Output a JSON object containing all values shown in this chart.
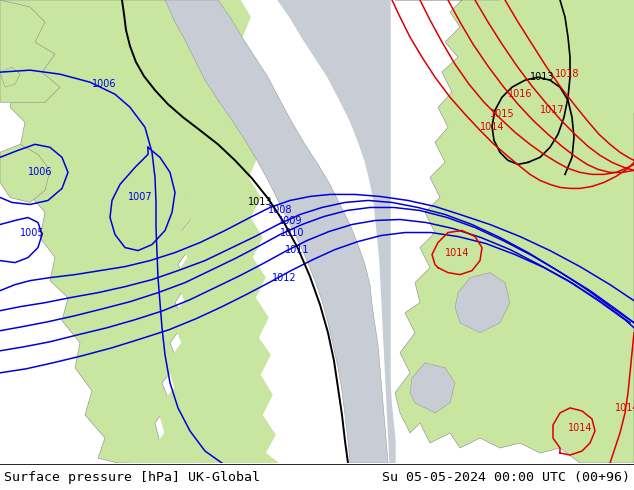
{
  "title_left": "Surface pressure [hPa] UK-Global",
  "title_right": "Su 05-05-2024 00:00 UTC (00+96)",
  "ocean_color": "#c8d0dc",
  "land_green": "#c8e6a0",
  "land_gray": "#c8ccd4",
  "coast_color": "#888888",
  "isobar_blue": "#0000dd",
  "isobar_black": "#000000",
  "isobar_red": "#dd0000",
  "figsize": [
    6.34,
    4.9
  ],
  "dpi": 100,
  "title_fontsize": 9.5
}
